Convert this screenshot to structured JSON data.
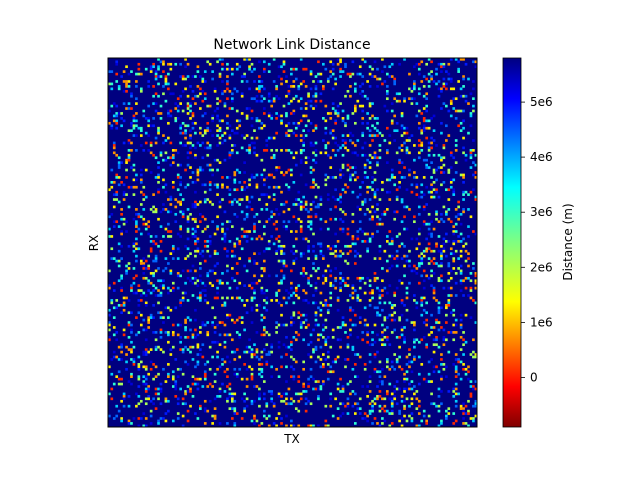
{
  "chart_data": {
    "type": "heatmap",
    "title": "Network Link Distance",
    "xlabel": "TX",
    "ylabel": "RX",
    "colorbar": {
      "label": "Distance (m)",
      "colormap": "jet_r",
      "range": [
        -900000,
        5800000
      ],
      "ticks": [
        0,
        1000000,
        2000000,
        3000000,
        4000000,
        5000000
      ],
      "tick_labels": [
        "0",
        "1e6",
        "2e6",
        "3e6",
        "4e6",
        "5e6"
      ]
    },
    "grid_size": 150,
    "x_ticks": [],
    "y_ticks": [],
    "notes": "Matrix values estimated: mostly ~5.8e6 (dark blue) with scattered links across the full range."
  }
}
